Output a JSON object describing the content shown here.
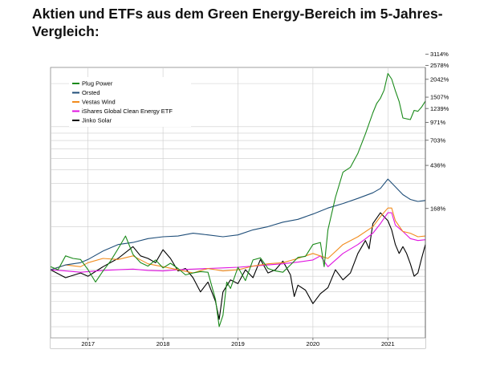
{
  "title": "Aktien und ETFs aus dem Green Energy-Bereich im 5-Jahres-Vergleich:",
  "chart_data": {
    "type": "line",
    "title": "Aktien und ETFs aus dem Green Energy-Bereich im 5-Jahres-Vergleich:",
    "xlabel": "",
    "ylabel": "",
    "y_scale": "log",
    "grid": true,
    "legend_position": "top-left",
    "x_range": [
      2016.5,
      2021.5
    ],
    "x_ticks": [
      2017,
      2018,
      2019,
      2020,
      2021
    ],
    "x_tick_labels": [
      "2017",
      "2018",
      "2019",
      "2020",
      "2021"
    ],
    "y_tick_labels": [
      "3114%",
      "2578%",
      "2042%",
      "1507%",
      "1239%",
      "971%",
      "703%",
      "436%",
      "168%"
    ],
    "series": [
      {
        "name": "Plug Power",
        "color": "#1a8a1a",
        "x": [
          2016.5,
          2016.6,
          2016.7,
          2016.8,
          2016.9,
          2017.0,
          2017.1,
          2017.2,
          2017.3,
          2017.4,
          2017.5,
          2017.6,
          2017.7,
          2017.8,
          2017.9,
          2018.0,
          2018.1,
          2018.2,
          2018.3,
          2018.4,
          2018.5,
          2018.6,
          2018.7,
          2018.75,
          2018.8,
          2018.85,
          2018.9,
          2019.0,
          2019.1,
          2019.2,
          2019.3,
          2019.4,
          2019.5,
          2019.6,
          2019.7,
          2019.8,
          2019.9,
          2020.0,
          2020.1,
          2020.15,
          2020.2,
          2020.3,
          2020.4,
          2020.5,
          2020.6,
          2020.7,
          2020.8,
          2020.85,
          2020.9,
          2020.95,
          2021.0,
          2021.05,
          2021.1,
          2021.15,
          2021.2,
          2021.3,
          2021.35,
          2021.4,
          2021.45,
          2021.5
        ],
        "values": [
          105,
          100,
          125,
          120,
          118,
          100,
          82,
          98,
          115,
          140,
          172,
          128,
          112,
          106,
          117,
          103,
          111,
          102,
          92,
          95,
          97,
          96,
          62,
          40,
          48,
          82,
          74,
          104,
          84,
          117,
          121,
          102,
          98,
          96,
          108,
          122,
          124,
          150,
          155,
          105,
          190,
          320,
          480,
          520,
          650,
          890,
          1250,
          1450,
          1580,
          1800,
          2350,
          2150,
          1780,
          1500,
          1150,
          1120,
          1300,
          1280,
          1370,
          1507
        ]
      },
      {
        "name": "Orsted",
        "color": "#1f4e79",
        "x": [
          2016.5,
          2016.7,
          2016.9,
          2017.0,
          2017.2,
          2017.4,
          2017.6,
          2017.8,
          2018.0,
          2018.2,
          2018.4,
          2018.6,
          2018.8,
          2019.0,
          2019.2,
          2019.4,
          2019.6,
          2019.8,
          2020.0,
          2020.2,
          2020.4,
          2020.6,
          2020.8,
          2020.9,
          2021.0,
          2021.1,
          2021.2,
          2021.3,
          2021.4,
          2021.5
        ],
        "values": [
          100,
          108,
          112,
          118,
          135,
          150,
          155,
          165,
          170,
          172,
          180,
          175,
          170,
          175,
          190,
          200,
          215,
          225,
          245,
          270,
          290,
          315,
          345,
          370,
          430,
          380,
          335,
          310,
          300,
          305
        ]
      },
      {
        "name": "Vestas Wind",
        "color": "#f28c1e",
        "x": [
          2016.5,
          2016.7,
          2016.9,
          2017.0,
          2017.2,
          2017.4,
          2017.6,
          2017.8,
          2018.0,
          2018.2,
          2018.4,
          2018.6,
          2018.8,
          2019.0,
          2019.2,
          2019.4,
          2019.6,
          2019.8,
          2020.0,
          2020.2,
          2020.4,
          2020.6,
          2020.8,
          2020.9,
          2021.0,
          2021.05,
          2021.1,
          2021.2,
          2021.3,
          2021.4,
          2021.5
        ],
        "values": [
          100,
          108,
          105,
          112,
          120,
          118,
          125,
          110,
          105,
          100,
          95,
          102,
          98,
          100,
          106,
          110,
          112,
          120,
          130,
          120,
          150,
          170,
          200,
          235,
          270,
          270,
          220,
          185,
          180,
          170,
          172
        ]
      },
      {
        "name": "iShares Global Clean Energy ETF",
        "color": "#e014e0",
        "x": [
          2016.5,
          2016.7,
          2016.9,
          2017.0,
          2017.2,
          2017.4,
          2017.6,
          2017.8,
          2018.0,
          2018.2,
          2018.4,
          2018.6,
          2018.8,
          2019.0,
          2019.2,
          2019.4,
          2019.6,
          2019.8,
          2020.0,
          2020.1,
          2020.2,
          2020.4,
          2020.6,
          2020.8,
          2020.9,
          2021.0,
          2021.05,
          2021.1,
          2021.2,
          2021.3,
          2021.4,
          2021.5
        ],
        "values": [
          100,
          98,
          96,
          97,
          99,
          100,
          101,
          99,
          98,
          100,
          101,
          102,
          103,
          104,
          106,
          108,
          110,
          113,
          117,
          125,
          105,
          130,
          150,
          180,
          210,
          250,
          250,
          205,
          185,
          165,
          160,
          162
        ]
      },
      {
        "name": "Jinko Solar",
        "color": "#000000",
        "x": [
          2016.5,
          2016.7,
          2016.9,
          2017.0,
          2017.2,
          2017.4,
          2017.6,
          2017.7,
          2017.8,
          2017.9,
          2018.0,
          2018.1,
          2018.2,
          2018.3,
          2018.4,
          2018.5,
          2018.6,
          2018.7,
          2018.75,
          2018.8,
          2018.9,
          2019.0,
          2019.1,
          2019.2,
          2019.3,
          2019.4,
          2019.5,
          2019.6,
          2019.7,
          2019.75,
          2019.8,
          2019.9,
          2020.0,
          2020.1,
          2020.2,
          2020.3,
          2020.4,
          2020.5,
          2020.6,
          2020.7,
          2020.75,
          2020.8,
          2020.9,
          2021.0,
          2021.05,
          2021.1,
          2021.15,
          2021.2,
          2021.25,
          2021.3,
          2021.35,
          2021.4,
          2021.45,
          2021.5
        ],
        "values": [
          100,
          88,
          95,
          90,
          105,
          120,
          145,
          125,
          120,
          112,
          138,
          120,
          98,
          102,
          88,
          70,
          82,
          60,
          45,
          70,
          85,
          80,
          100,
          88,
          118,
          95,
          100,
          115,
          92,
          65,
          78,
          72,
          58,
          68,
          75,
          100,
          85,
          95,
          130,
          160,
          140,
          210,
          250,
          220,
          190,
          150,
          130,
          145,
          130,
          110,
          90,
          95,
          120,
          150
        ]
      }
    ]
  }
}
